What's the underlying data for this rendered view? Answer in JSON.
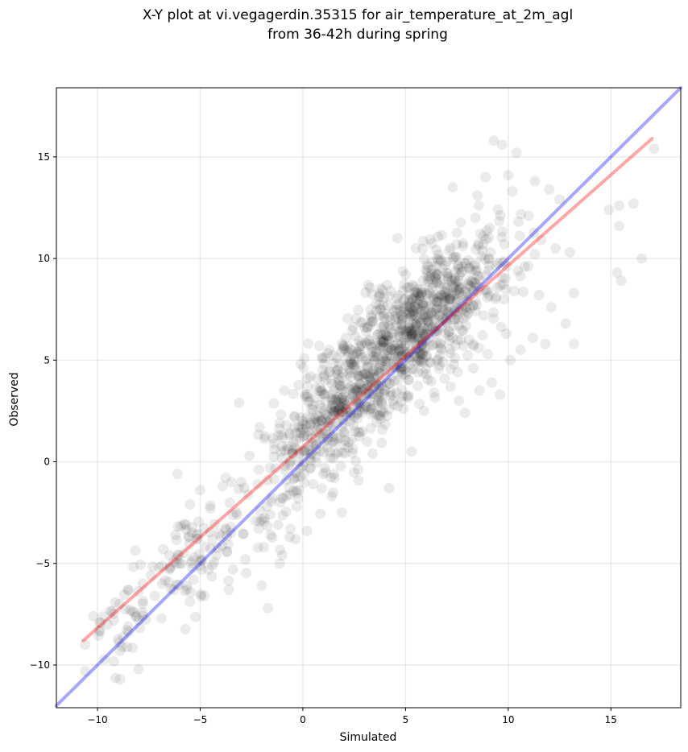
{
  "chart_data": {
    "type": "scatter",
    "title": "X-Y plot at vi.vegagerdin.35315 for air_temperature_at_2m_agl",
    "subtitle": "from 36-42h during spring",
    "xlabel": "Simulated",
    "ylabel": "Observed",
    "xlim": [
      -12.0,
      18.4
    ],
    "ylim": [
      -12.1,
      18.4
    ],
    "xticks": [
      -10,
      -5,
      0,
      5,
      10,
      15
    ],
    "yticks": [
      -10,
      -5,
      0,
      5,
      10,
      15
    ],
    "xtick_labels": [
      "−10",
      "−5",
      "0",
      "5",
      "10",
      "15"
    ],
    "ytick_labels": [
      "−10",
      "−5",
      "0",
      "5",
      "10",
      "15"
    ],
    "grid": true,
    "point_color": "#000000",
    "point_opacity": 0.08,
    "reference_lines": [
      {
        "kind": "one-to-one",
        "color": "#0000ff",
        "opacity": 0.35,
        "x": [
          -12.0,
          18.4
        ],
        "y": [
          -12.0,
          18.4
        ]
      },
      {
        "kind": "linear-fit",
        "color": "#ff0000",
        "opacity": 0.35,
        "x": [
          -10.7,
          17.0
        ],
        "y": [
          -8.8,
          15.9
        ]
      }
    ],
    "points": [
      [
        -10.6,
        -9.0
      ],
      [
        -10.6,
        -10.3
      ],
      [
        -10.2,
        -7.6
      ],
      [
        -9.9,
        -7.9
      ],
      [
        -9.7,
        -7.6
      ],
      [
        -9.5,
        -8.0
      ],
      [
        -9.9,
        -8.3
      ],
      [
        -9.2,
        -7.8
      ],
      [
        -8.8,
        -9.1
      ],
      [
        -8.9,
        -9.3
      ],
      [
        -8.9,
        -10.7
      ],
      [
        -8.5,
        -8.1
      ],
      [
        -8.5,
        -6.3
      ],
      [
        -8.1,
        -7.6
      ],
      [
        -8.0,
        -10.2
      ],
      [
        -7.8,
        -7.4
      ],
      [
        -7.8,
        -6.0
      ],
      [
        -7.4,
        -5.6
      ],
      [
        -7.2,
        -6.6
      ],
      [
        -7.0,
        -5.2
      ],
      [
        -6.8,
        -4.3
      ],
      [
        -6.5,
        -4.6
      ],
      [
        -6.2,
        -3.6
      ],
      [
        -6.1,
        -0.6
      ],
      [
        -6.0,
        -5.0
      ],
      [
        -5.7,
        -3.1
      ],
      [
        -5.5,
        -2.1
      ],
      [
        -5.3,
        -4.7
      ],
      [
        -5.1,
        -3.8
      ],
      [
        -5.0,
        -1.4
      ],
      [
        -4.8,
        -6.6
      ],
      [
        -4.6,
        -5.3
      ],
      [
        -4.5,
        -2.3
      ],
      [
        -4.2,
        -4.6
      ],
      [
        -3.9,
        -1.2
      ],
      [
        -3.6,
        -6.3
      ],
      [
        -3.5,
        -3.5
      ],
      [
        -3.4,
        -5.3
      ],
      [
        -3.2,
        -2.6
      ],
      [
        -3.1,
        2.9
      ],
      [
        -3.0,
        -1.0
      ],
      [
        -2.8,
        -4.8
      ],
      [
        -2.6,
        0.3
      ],
      [
        -2.3,
        -2.9
      ],
      [
        -2.2,
        -1.1
      ],
      [
        -2.1,
        1.7
      ],
      [
        -2.0,
        -6.1
      ],
      [
        -1.9,
        -4.2
      ],
      [
        -1.7,
        -7.2
      ],
      [
        -1.6,
        -0.3
      ],
      [
        -1.5,
        -1.8
      ],
      [
        -1.4,
        0.9
      ],
      [
        -1.2,
        -3.1
      ],
      [
        -1.1,
        -2.0
      ],
      [
        -1.0,
        -4.6
      ],
      [
        -0.9,
        3.5
      ],
      [
        -0.8,
        -0.9
      ],
      [
        -0.8,
        1.8
      ],
      [
        -0.6,
        -3.3
      ],
      [
        -0.5,
        0.4
      ],
      [
        -0.4,
        2.2
      ],
      [
        -0.3,
        -2.2
      ],
      [
        -0.2,
        -1.4
      ],
      [
        -0.1,
        4.8
      ],
      [
        0.0,
        -0.2
      ],
      [
        0.0,
        1.6
      ],
      [
        0.1,
        3.3
      ],
      [
        0.2,
        -3.4
      ],
      [
        0.3,
        0.6
      ],
      [
        0.4,
        2.6
      ],
      [
        0.5,
        -1.1
      ],
      [
        0.6,
        0.8
      ],
      [
        0.7,
        4.1
      ],
      [
        0.8,
        5.7
      ],
      [
        0.9,
        2.0
      ],
      [
        1.0,
        -0.6
      ],
      [
        1.1,
        3.0
      ],
      [
        1.2,
        1.2
      ],
      [
        1.3,
        5.5
      ],
      [
        1.4,
        -1.7
      ],
      [
        1.5,
        2.4
      ],
      [
        1.6,
        0.4
      ],
      [
        1.7,
        4.5
      ],
      [
        1.8,
        3.6
      ],
      [
        1.9,
        -2.5
      ],
      [
        2.0,
        1.9
      ],
      [
        2.1,
        6.1
      ],
      [
        2.2,
        0.7
      ],
      [
        2.3,
        3.1
      ],
      [
        2.4,
        4.8
      ],
      [
        2.5,
        2.2
      ],
      [
        2.6,
        5.3
      ],
      [
        2.7,
        -0.4
      ],
      [
        2.8,
        3.8
      ],
      [
        2.9,
        1.5
      ],
      [
        3.0,
        6.6
      ],
      [
        3.1,
        2.7
      ],
      [
        3.2,
        4.2
      ],
      [
        3.3,
        7.5
      ],
      [
        3.4,
        0.4
      ],
      [
        3.5,
        5.0
      ],
      [
        3.6,
        3.3
      ],
      [
        3.7,
        8.1
      ],
      [
        3.8,
        2.1
      ],
      [
        3.9,
        6.0
      ],
      [
        4.0,
        4.4
      ],
      [
        4.1,
        8.7
      ],
      [
        4.2,
        -1.3
      ],
      [
        4.3,
        5.5
      ],
      [
        4.4,
        3.0
      ],
      [
        4.5,
        7.0
      ],
      [
        4.6,
        11.0
      ],
      [
        4.7,
        4.7
      ],
      [
        4.8,
        6.5
      ],
      [
        4.9,
        2.6
      ],
      [
        5.0,
        9.2
      ],
      [
        5.1,
        5.3
      ],
      [
        5.2,
        7.6
      ],
      [
        5.3,
        0.5
      ],
      [
        5.4,
        6.1
      ],
      [
        5.5,
        10.5
      ],
      [
        5.6,
        4.4
      ],
      [
        5.7,
        8.2
      ],
      [
        5.8,
        5.8
      ],
      [
        5.9,
        2.5
      ],
      [
        6.0,
        7.1
      ],
      [
        6.1,
        9.6
      ],
      [
        6.2,
        4.9
      ],
      [
        6.3,
        6.6
      ],
      [
        6.4,
        3.4
      ],
      [
        6.5,
        8.8
      ],
      [
        6.6,
        10.2
      ],
      [
        6.7,
        5.6
      ],
      [
        6.8,
        7.5
      ],
      [
        6.9,
        4.1
      ],
      [
        7.0,
        9.3
      ],
      [
        7.1,
        6.2
      ],
      [
        7.2,
        8.0
      ],
      [
        7.3,
        13.5
      ],
      [
        7.4,
        5.1
      ],
      [
        7.5,
        7.2
      ],
      [
        7.6,
        3.0
      ],
      [
        7.7,
        8.6
      ],
      [
        7.8,
        10.6
      ],
      [
        7.9,
        2.4
      ],
      [
        8.0,
        7.9
      ],
      [
        8.1,
        6.0
      ],
      [
        8.2,
        9.4
      ],
      [
        8.3,
        4.6
      ],
      [
        8.4,
        12.0
      ],
      [
        8.5,
        13.1
      ],
      [
        8.6,
        3.5
      ],
      [
        8.7,
        10.1
      ],
      [
        8.8,
        7.2
      ],
      [
        8.9,
        14.0
      ],
      [
        9.0,
        5.3
      ],
      [
        9.1,
        11.5
      ],
      [
        9.2,
        3.9
      ],
      [
        9.3,
        15.8
      ],
      [
        9.4,
        8.1
      ],
      [
        9.5,
        12.4
      ],
      [
        9.6,
        3.3
      ],
      [
        9.7,
        15.6
      ],
      [
        9.8,
        10.7
      ],
      [
        9.9,
        6.3
      ],
      [
        10.0,
        14.1
      ],
      [
        10.1,
        5.0
      ],
      [
        10.2,
        13.3
      ],
      [
        10.3,
        8.4
      ],
      [
        10.4,
        15.2
      ],
      [
        10.5,
        11.8
      ],
      [
        10.6,
        5.5
      ],
      [
        10.8,
        9.6
      ],
      [
        11.0,
        12.1
      ],
      [
        11.2,
        6.1
      ],
      [
        11.3,
        13.8
      ],
      [
        11.5,
        8.2
      ],
      [
        11.6,
        10.9
      ],
      [
        11.8,
        5.8
      ],
      [
        12.0,
        13.4
      ],
      [
        12.1,
        7.6
      ],
      [
        12.3,
        10.5
      ],
      [
        12.5,
        12.9
      ],
      [
        12.8,
        6.8
      ],
      [
        13.0,
        10.3
      ],
      [
        13.2,
        8.3
      ],
      [
        13.2,
        5.8
      ],
      [
        14.9,
        12.4
      ],
      [
        15.3,
        9.3
      ],
      [
        15.4,
        11.6
      ],
      [
        15.5,
        8.9
      ],
      [
        15.4,
        12.6
      ],
      [
        16.1,
        12.7
      ],
      [
        16.5,
        10.0
      ],
      [
        17.1,
        15.4
      ]
    ],
    "cluster_core": [
      [
        0.8,
        1.4
      ],
      [
        1.5,
        2.3
      ],
      [
        2.2,
        3.1
      ],
      [
        3.0,
        4.1
      ],
      [
        3.7,
        5.0
      ],
      [
        4.4,
        5.7
      ],
      [
        5.1,
        6.4
      ],
      [
        5.9,
        7.0
      ],
      [
        6.6,
        7.6
      ],
      [
        7.3,
        8.1
      ],
      [
        8.1,
        8.5
      ]
    ]
  }
}
